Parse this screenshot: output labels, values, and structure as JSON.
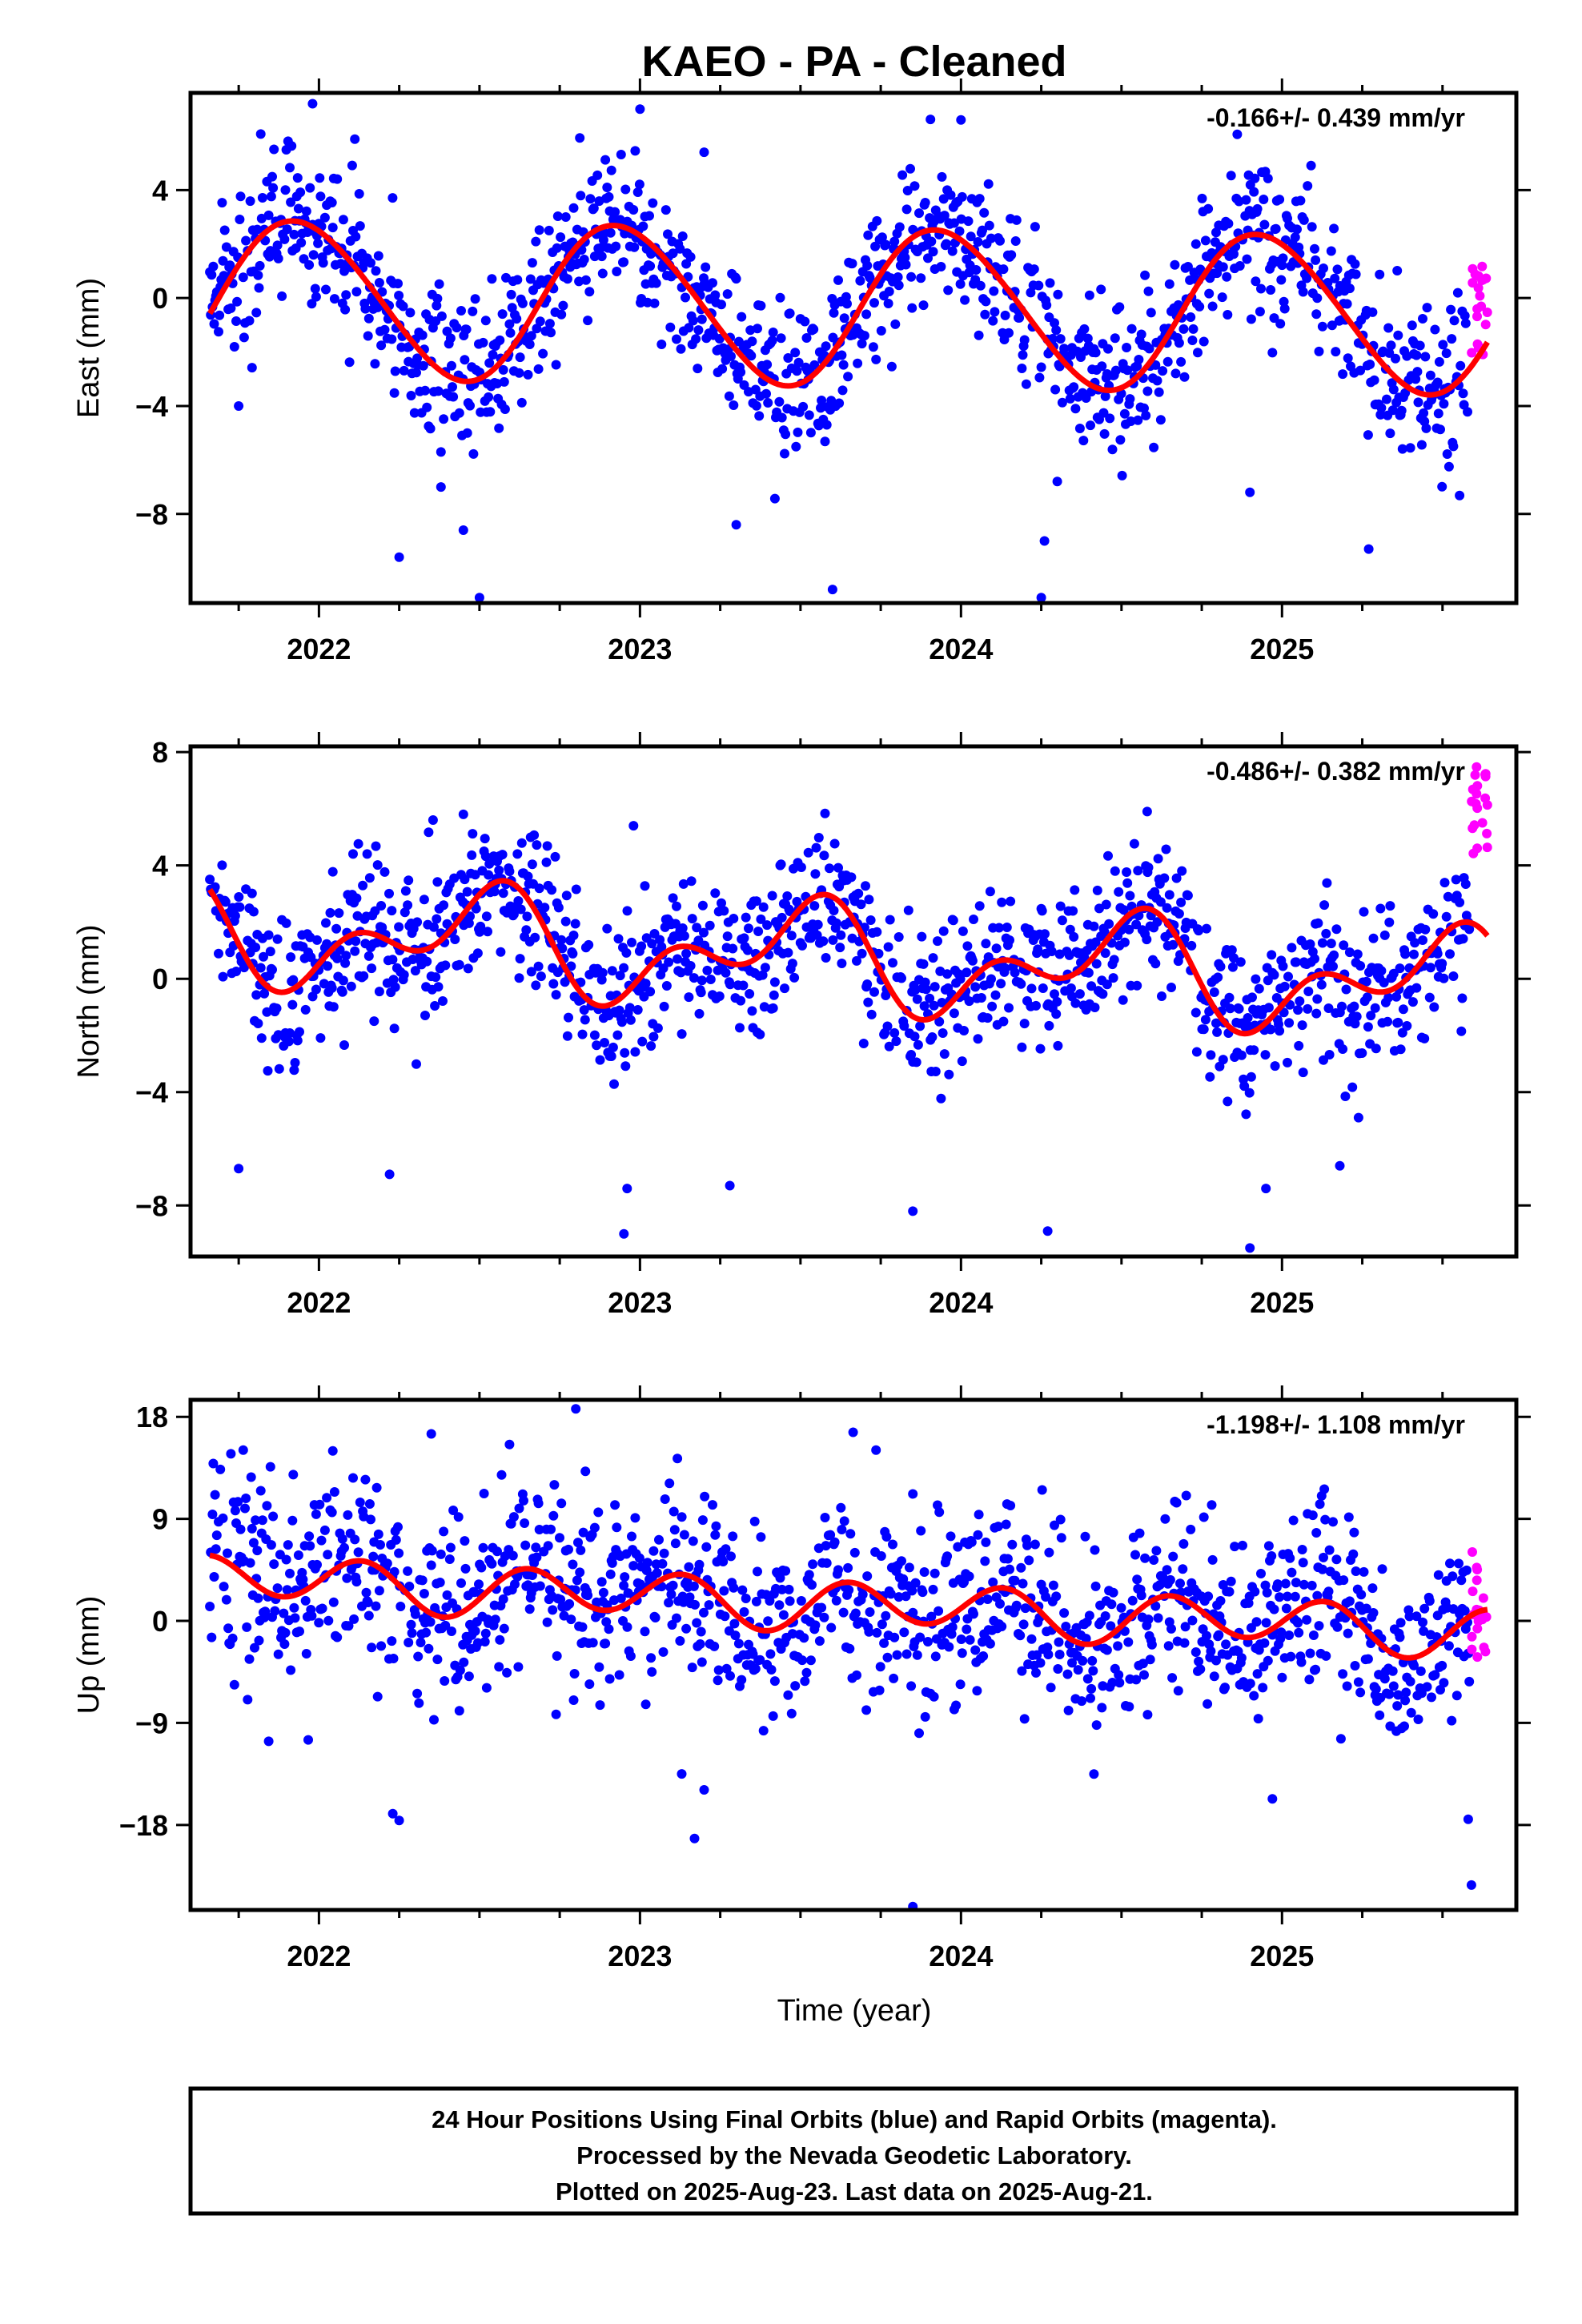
{
  "figure": {
    "title": "KAEO  - PA - Cleaned",
    "x_axis_label": "Time (year)",
    "colors": {
      "final": "#0000ff",
      "rapid": "#ff00ff",
      "fit": "#ff0000",
      "frame": "#000000"
    },
    "footer": [
      "24 Hour Positions Using Final Orbits (blue) and Rapid Orbits (magenta).",
      "Processed by the Nevada Geodetic Laboratory.",
      "Plotted on 2025-Aug-23. Last data on 2025-Aug-21."
    ]
  },
  "chart_data": [
    {
      "type": "scatter",
      "ylabel": "East (mm)",
      "rate_text": "-0.166+/- 0.439 mm/yr",
      "xlim": [
        2021.6,
        2025.73
      ],
      "ylim": [
        -11.3,
        7.6
      ],
      "x_ticks": [
        2022,
        2023,
        2024,
        2025
      ],
      "y_ticks": [
        4,
        0,
        -4,
        -8
      ],
      "x_tick_labels": [
        "2022",
        "2023",
        "2024",
        "2025"
      ],
      "y_tick_labels": [
        "4",
        "0",
        "−4",
        "−8"
      ],
      "fit": {
        "offset": -0.3,
        "trend": -0.166,
        "amp1": 2.9,
        "phase1": 0.94,
        "amp2": 0.2,
        "phase2": 0.3
      },
      "noise_sd": 1.45,
      "outliers": [
        [
          2021.75,
          -4.0
        ],
        [
          2022.25,
          -9.6
        ],
        [
          2022.38,
          -7.0
        ],
        [
          2022.45,
          -8.6
        ],
        [
          2022.5,
          -11.1
        ],
        [
          2023.2,
          5.4
        ],
        [
          2023.3,
          -8.4
        ],
        [
          2023.6,
          -10.8
        ],
        [
          2024.25,
          -11.1
        ],
        [
          2024.26,
          -9.0
        ],
        [
          2024.3,
          -6.8
        ],
        [
          2024.9,
          -7.2
        ],
        [
          2025.27,
          -9.3
        ],
        [
          2021.98,
          7.2
        ],
        [
          2023.0,
          7.0
        ],
        [
          2024.0,
          6.6
        ]
      ],
      "rapid": {
        "x_range": [
          2025.59,
          2025.64
        ],
        "center": -0.5,
        "spread": 1.8,
        "count": 20
      }
    },
    {
      "type": "scatter",
      "ylabel": "North (mm)",
      "rate_text": "-0.486+/- 0.382 mm/yr",
      "xlim": [
        2021.6,
        2025.73
      ],
      "ylim": [
        -9.8,
        8.2
      ],
      "x_ticks": [
        2022,
        2023,
        2024,
        2025
      ],
      "y_ticks": [
        8,
        4,
        0,
        -4,
        -8
      ],
      "x_tick_labels": [
        "2022",
        "2023",
        "2024",
        "2025"
      ],
      "y_tick_labels": [
        "8",
        "4",
        "0",
        "−4",
        "−8"
      ],
      "fit": {
        "offset": 0.8,
        "trend": -0.486,
        "amp1": 1.35,
        "phase1": 0.49,
        "amp2": 1.1,
        "phase2": 0.1
      },
      "noise_sd": 1.35,
      "outliers": [
        [
          2021.75,
          -6.7
        ],
        [
          2022.22,
          -6.9
        ],
        [
          2022.45,
          5.8
        ],
        [
          2022.95,
          -9.0
        ],
        [
          2022.96,
          -7.4
        ],
        [
          2023.28,
          -7.3
        ],
        [
          2023.85,
          -8.2
        ],
        [
          2024.27,
          -8.9
        ],
        [
          2024.58,
          5.9
        ],
        [
          2024.9,
          -9.5
        ],
        [
          2024.95,
          -7.4
        ],
        [
          2025.18,
          -6.6
        ],
        [
          2022.98,
          5.4
        ]
      ],
      "rapid": {
        "x_range": [
          2025.59,
          2025.64
        ],
        "center": 5.8,
        "spread": 1.7,
        "count": 20
      }
    },
    {
      "type": "scatter",
      "ylabel": "Up (mm)",
      "rate_text": "-1.198+/- 1.108 mm/yr",
      "xlim": [
        2021.6,
        2025.73
      ],
      "ylim": [
        -25.5,
        19.5
      ],
      "x_ticks": [
        2022,
        2023,
        2024,
        2025
      ],
      "y_ticks": [
        18,
        9,
        0,
        -9,
        -18
      ],
      "x_tick_labels": [
        "2022",
        "2023",
        "2024",
        "2025"
      ],
      "y_tick_labels": [
        "18",
        "9",
        "0",
        "−9",
        "−18"
      ],
      "fit": {
        "offset": 1.6,
        "trend": -1.198,
        "amp1": 0.6,
        "phase1": 0.9,
        "amp2": 2.0,
        "phase2": 0.14
      },
      "noise_sd": 4.2,
      "outliers": [
        [
          2022.23,
          -17.0
        ],
        [
          2022.25,
          -17.6
        ],
        [
          2022.35,
          16.5
        ],
        [
          2022.8,
          18.7
        ],
        [
          2022.83,
          13.2
        ],
        [
          2023.13,
          -13.5
        ],
        [
          2023.17,
          -19.2
        ],
        [
          2023.2,
          -14.9
        ],
        [
          2023.85,
          -25.2
        ],
        [
          2024.97,
          -15.7
        ],
        [
          2025.58,
          -17.5
        ],
        [
          2025.59,
          -23.3
        ],
        [
          2021.92,
          12.9
        ],
        [
          2023.85,
          11.2
        ]
      ],
      "rapid": {
        "x_range": [
          2025.59,
          2025.64
        ],
        "center": 1.5,
        "spread": 5.5,
        "count": 20
      }
    }
  ]
}
